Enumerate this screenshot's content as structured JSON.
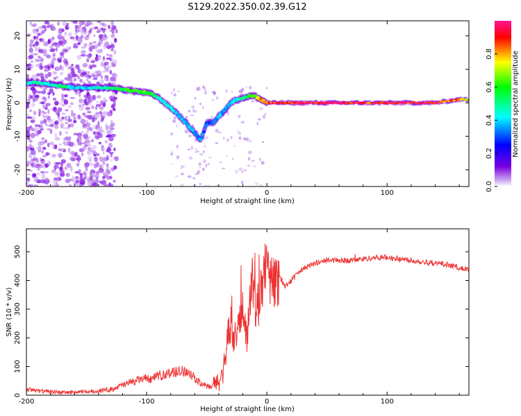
{
  "title": "S129.2022.350.02.39.G12",
  "chart_data": [
    {
      "type": "heatmap",
      "xlabel": "Height of straight line (km)",
      "ylabel": "Frequency (Hz)",
      "xlim": [
        -200,
        168
      ],
      "ylim": [
        -25,
        24.5
      ],
      "xticks": [
        -200,
        -100,
        0,
        100
      ],
      "yticks": [
        -20,
        -10,
        0,
        10,
        20
      ],
      "grid": false,
      "colorbar": {
        "label": "Normalized spectral amplitude",
        "range": [
          0,
          1
        ],
        "ticks": [
          0.0,
          0.2,
          0.4,
          0.6,
          0.8
        ],
        "colormap": [
          "#ffffff",
          "#c9a3f0",
          "#7a00e0",
          "#0000ff",
          "#00ffff",
          "#00ff00",
          "#ffff00",
          "#ff0000",
          "#ff1493"
        ]
      },
      "ridge": {
        "x": [
          -200,
          -190,
          -180,
          -170,
          -160,
          -150,
          -140,
          -130,
          -120,
          -110,
          -100,
          -95,
          -90,
          -85,
          -80,
          -75,
          -70,
          -65,
          -60,
          -55,
          -50,
          -45,
          -40,
          -35,
          -30,
          -25,
          -20,
          -15,
          -10,
          -5,
          0,
          10,
          20,
          40,
          60,
          80,
          90,
          100,
          120,
          140,
          150,
          160,
          168
        ],
        "y": [
          6,
          6,
          5.5,
          5,
          4.5,
          4.5,
          4.5,
          4.5,
          4,
          3.5,
          3,
          2.5,
          1.5,
          0,
          -1.5,
          -3,
          -5,
          -7,
          -9,
          -11,
          -6,
          -6,
          -4,
          -2,
          0,
          1,
          1.5,
          2,
          2,
          1,
          0,
          0,
          0,
          0,
          0,
          0,
          0,
          0,
          0,
          0,
          0.5,
          1,
          1
        ]
      },
      "ridge_amplitude": [
        0.45,
        0.5,
        0.45,
        0.55,
        0.4,
        0.4,
        0.45,
        0.5,
        0.55,
        0.6,
        0.6,
        0.55,
        0.5,
        0.45,
        0.4,
        0.4,
        0.4,
        0.4,
        0.35,
        0.35,
        0.3,
        0.3,
        0.4,
        0.35,
        0.4,
        0.45,
        0.5,
        0.55,
        0.6,
        0.75,
        0.85,
        0.9,
        0.95,
        0.95,
        0.95,
        0.95,
        0.9,
        0.95,
        0.95,
        0.9,
        0.85,
        0.8,
        0.7
      ]
    },
    {
      "type": "line",
      "xlabel": "Height of straight line (km)",
      "ylabel": "SNR (10 * v/v)",
      "xlim": [
        -200,
        168
      ],
      "ylim": [
        0,
        580
      ],
      "xticks": [
        -200,
        -100,
        0,
        100
      ],
      "yticks": [
        0,
        100,
        200,
        300,
        400,
        500
      ],
      "grid": false,
      "series": [
        {
          "color": "#ee3333",
          "x": [
            -200,
            -190,
            -180,
            -170,
            -160,
            -150,
            -140,
            -130,
            -120,
            -110,
            -100,
            -95,
            -90,
            -85,
            -80,
            -75,
            -70,
            -65,
            -60,
            -55,
            -50,
            -45,
            -40,
            -37,
            -35,
            -33,
            -30,
            -28,
            -25,
            -22,
            -20,
            -17,
            -15,
            -12,
            -10,
            -8,
            -5,
            -3,
            0,
            5,
            10,
            15,
            20,
            25,
            30,
            40,
            50,
            60,
            70,
            80,
            90,
            100,
            110,
            120,
            130,
            140,
            150,
            160,
            168
          ],
          "y": [
            20,
            15,
            12,
            10,
            10,
            12,
            15,
            20,
            35,
            50,
            60,
            55,
            70,
            70,
            80,
            80,
            85,
            80,
            60,
            40,
            30,
            30,
            50,
            70,
            120,
            200,
            250,
            180,
            220,
            260,
            330,
            200,
            280,
            420,
            320,
            300,
            350,
            430,
            450,
            380,
            420,
            380,
            400,
            420,
            440,
            460,
            470,
            470,
            470,
            475,
            480,
            480,
            475,
            470,
            465,
            460,
            455,
            445,
            435
          ]
        }
      ]
    }
  ]
}
